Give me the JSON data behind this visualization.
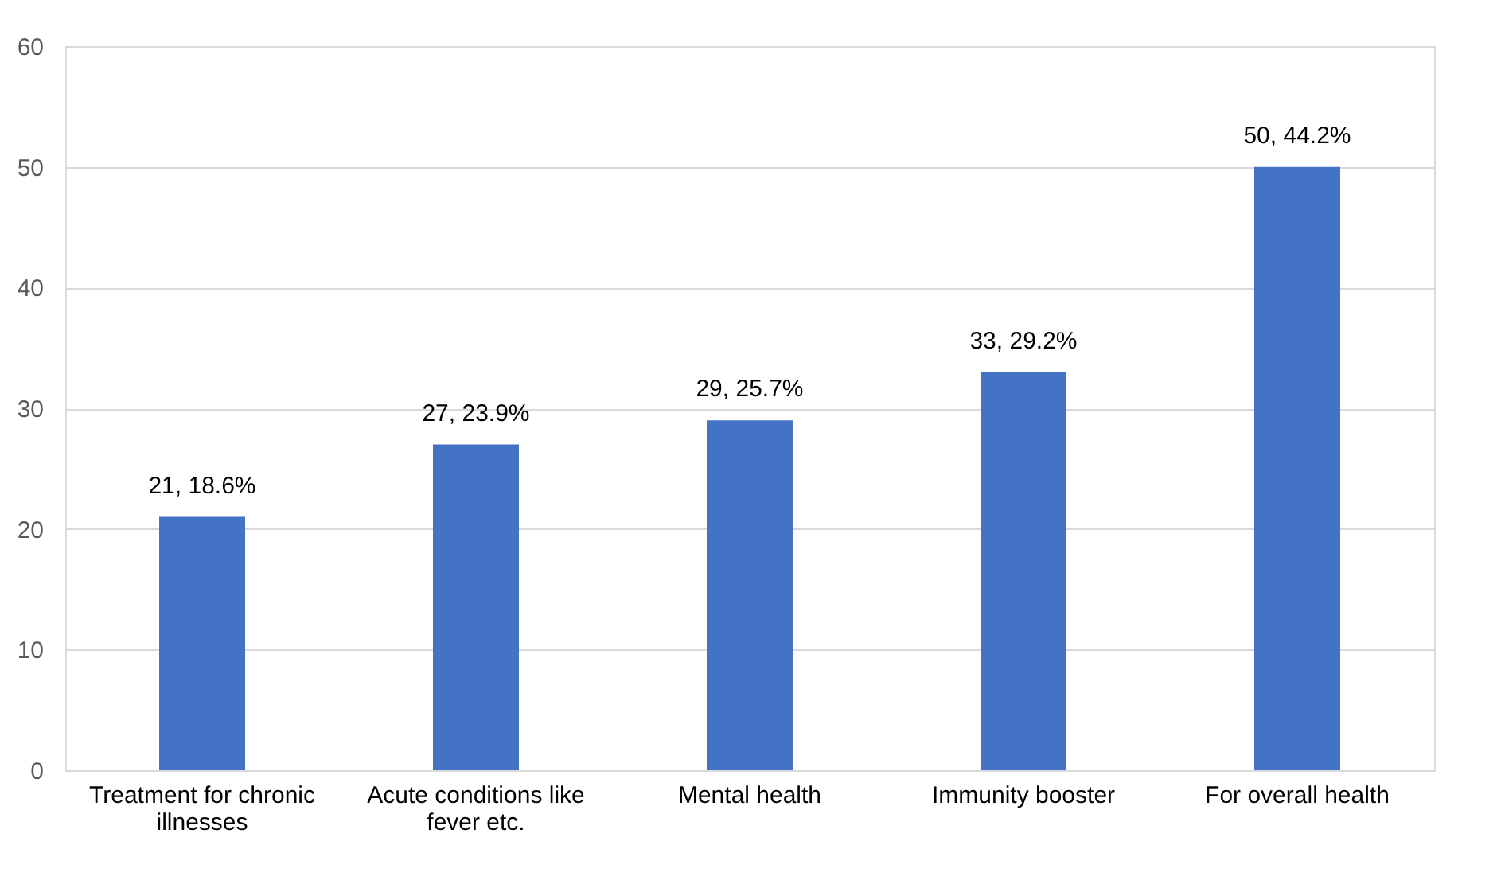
{
  "chart_data": {
    "type": "bar",
    "categories": [
      "Treatment for chronic illnesses",
      "Acute conditions like fever etc.",
      "Mental health",
      "Immunity booster",
      "For overall health"
    ],
    "values": [
      21,
      27,
      29,
      33,
      50
    ],
    "value_labels": [
      "21, 18.6%",
      "27, 23.9%",
      "29, 25.7%",
      "33, 29.2%",
      "50, 44.2%"
    ],
    "color": "#4472c4",
    "ylim": [
      0,
      60
    ],
    "yticks": [
      0,
      10,
      20,
      30,
      40,
      50,
      60
    ],
    "grid": "y"
  }
}
